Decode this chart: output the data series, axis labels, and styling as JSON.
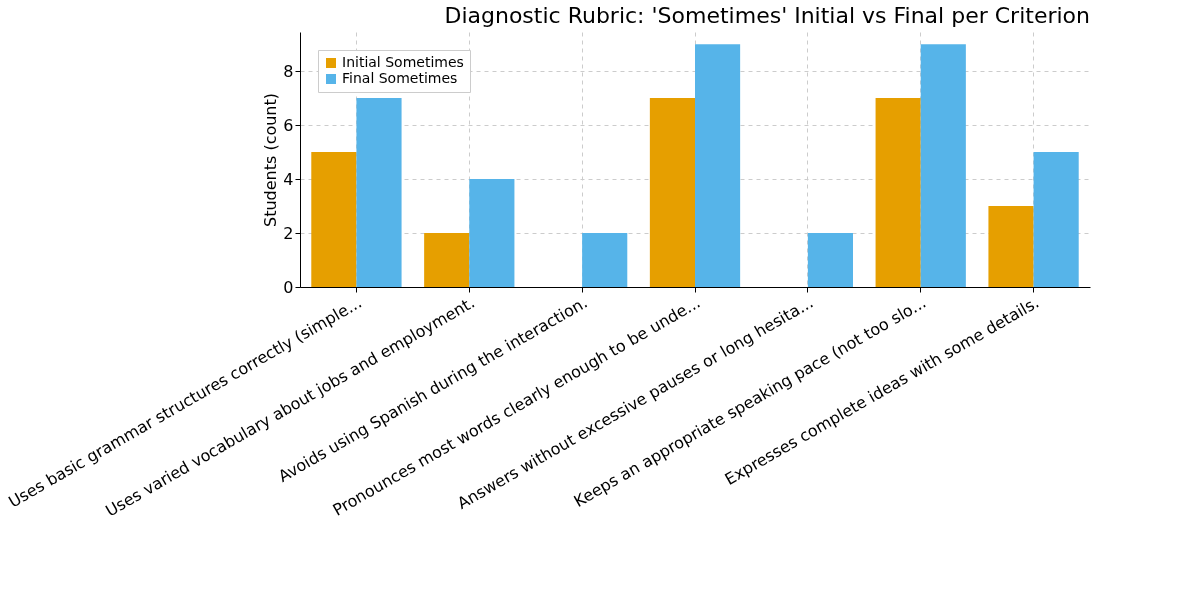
{
  "chart_data": {
    "type": "bar",
    "title": "Diagnostic Rubric: 'Sometimes' Initial vs Final per Criterion",
    "ylabel": "Students (count)",
    "categories": [
      "Uses basic grammar structures correctly (simple...",
      "Uses varied vocabulary about jobs and employment.",
      "Avoids using Spanish during the interaction.",
      "Pronounces most words clearly enough to be unde...",
      "Answers without excessive pauses or long hesita...",
      "Keeps an appropriate speaking pace (not too slo...",
      "Expresses complete ideas with some details."
    ],
    "series": [
      {
        "name": "Initial Sometimes",
        "color": "#e69f00",
        "values": [
          5,
          2,
          0,
          7,
          0,
          7,
          3
        ]
      },
      {
        "name": "Final Sometimes",
        "color": "#56b4e9",
        "values": [
          7,
          4,
          2,
          9,
          2,
          9,
          5
        ]
      }
    ],
    "ylim": [
      0,
      9.45
    ],
    "yticks": [
      0,
      2,
      4,
      6,
      8
    ],
    "grid": true,
    "legend": "top left"
  }
}
